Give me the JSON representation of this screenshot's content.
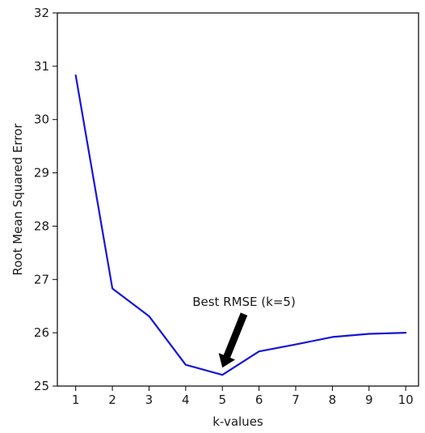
{
  "chart_data": {
    "type": "line",
    "title": "",
    "xlabel": "k-values",
    "ylabel": "Root Mean Squared Error",
    "x": [
      1,
      2,
      3,
      4,
      5,
      6,
      7,
      8,
      9,
      10
    ],
    "series": [
      {
        "values": [
          30.83,
          26.83,
          26.31,
          25.4,
          25.21,
          25.65,
          25.78,
          25.92,
          25.98,
          26.0
        ]
      }
    ],
    "xlim": [
      0.5,
      10.35
    ],
    "ylim": [
      25,
      32
    ],
    "xticks": [
      "1",
      "2",
      "3",
      "4",
      "5",
      "6",
      "7",
      "8",
      "9",
      "10"
    ],
    "yticks": [
      "25",
      "26",
      "27",
      "28",
      "29",
      "30",
      "31",
      "32"
    ],
    "grid": false,
    "line_color": "#1515d8",
    "annotation": {
      "text": "Best RMSE (k=5)",
      "target_x": 5,
      "target_y": 25.21,
      "arrow_color": "#000000"
    }
  }
}
